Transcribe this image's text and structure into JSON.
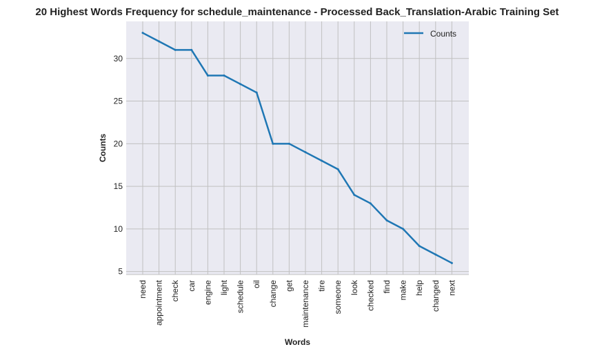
{
  "chart_data": {
    "type": "line",
    "title": "20 Highest Words Frequency for schedule_maintenance - Processed Back_Translation-Arabic Training Set",
    "xlabel": "Words",
    "ylabel": "Counts",
    "categories": [
      "need",
      "appointment",
      "check",
      "car",
      "engine",
      "light",
      "schedule",
      "oil",
      "change",
      "get",
      "maintenance",
      "tire",
      "someone",
      "look",
      "checked",
      "find",
      "make",
      "help",
      "changed",
      "next"
    ],
    "series": [
      {
        "name": "Counts",
        "values": [
          33,
          32,
          31,
          31,
          28,
          28,
          27,
          26,
          20,
          20,
          19,
          18,
          17,
          14,
          13,
          11,
          10,
          8,
          7,
          6
        ],
        "color": "#1f77b4"
      }
    ],
    "y_ticks": [
      "5",
      "10",
      "15",
      "20",
      "25",
      "30"
    ],
    "ylim": [
      4.65,
      34.35
    ],
    "grid": true,
    "legend_position": "upper right",
    "background_color": "#eaeaf2",
    "grid_color": "#c0c0c0"
  }
}
